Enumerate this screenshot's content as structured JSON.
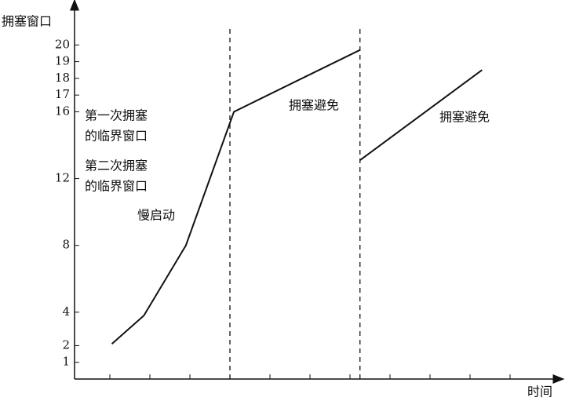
{
  "chart_data": {
    "type": "line",
    "y_label": "拥塞窗口",
    "x_label": "时间",
    "annotations": [
      "第一次拥塞",
      "的临界窗口",
      "第二次拥塞",
      "的临界窗口",
      "慢启动",
      "拥塞避免",
      "拥塞避免"
    ],
    "series": [
      {
        "x": [
          1.05,
          1.85,
          2.9,
          4.1,
          7.25
        ],
        "values": [
          2.1,
          3.8,
          8,
          16,
          19.7
        ],
        "color": "#111111"
      },
      {
        "x": [
          7.25,
          10.3
        ],
        "values": [
          13.1,
          18.5
        ],
        "color": "#111111"
      }
    ],
    "vlines": [
      4.0,
      7.25
    ],
    "xlim": [
      0,
      12
    ],
    "xticks": [
      1,
      2,
      3,
      4,
      5,
      6,
      7,
      8,
      9,
      10,
      11
    ],
    "ylim": [
      0,
      21
    ],
    "yticks": [
      1,
      2,
      4,
      8,
      12,
      16,
      17,
      18,
      19,
      20
    ]
  }
}
